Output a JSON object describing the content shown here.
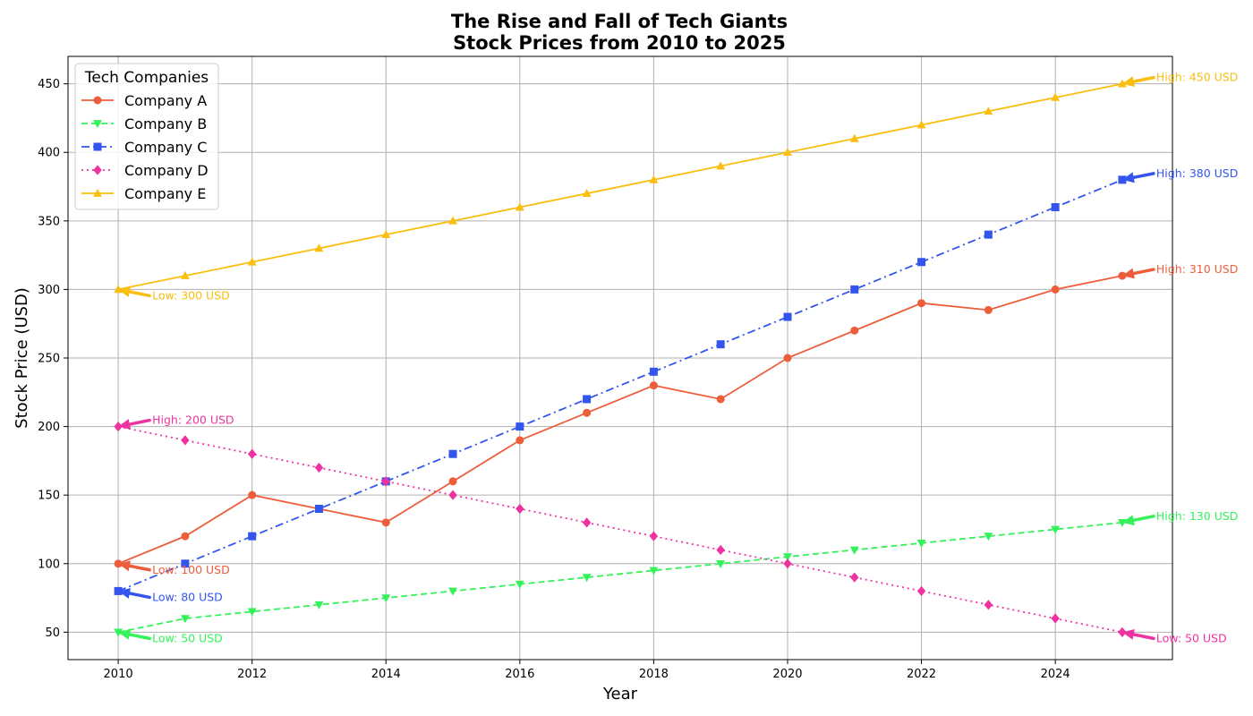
{
  "chart_data": {
    "type": "line",
    "title_line1": "The Rise and Fall of Tech Giants",
    "title_line2": "Stock Prices from 2010 to 2025",
    "xlabel": "Year",
    "ylabel": "Stock Price (USD)",
    "xlim": [
      2009.25,
      2025.75
    ],
    "ylim": [
      30,
      470
    ],
    "x_ticks": [
      2010,
      2012,
      2014,
      2016,
      2018,
      2020,
      2022,
      2024
    ],
    "y_ticks": [
      50,
      100,
      150,
      200,
      250,
      300,
      350,
      400,
      450
    ],
    "grid": true,
    "legend_title": "Tech Companies",
    "legend_position": "top-left",
    "x": [
      2010,
      2011,
      2012,
      2013,
      2014,
      2015,
      2016,
      2017,
      2018,
      2019,
      2020,
      2021,
      2022,
      2023,
      2024,
      2025
    ],
    "series": [
      {
        "name": "Company A",
        "color": "#EE5D3B",
        "marker": "circle",
        "linestyle": "solid",
        "values": [
          100,
          120,
          150,
          140,
          130,
          160,
          190,
          210,
          230,
          220,
          250,
          270,
          290,
          285,
          300,
          310
        ],
        "low_label": "Low: 100 USD",
        "high_label": "High: 310 USD"
      },
      {
        "name": "Company B",
        "color": "#33F25A",
        "marker": "triangle-down",
        "linestyle": "dashed",
        "values": [
          50,
          60,
          65,
          70,
          75,
          80,
          85,
          90,
          95,
          100,
          105,
          110,
          115,
          120,
          125,
          130
        ],
        "low_label": "Low: 50 USD",
        "high_label": "High: 130 USD"
      },
      {
        "name": "Company C",
        "color": "#3355EE",
        "marker": "square",
        "linestyle": "dashdot",
        "values": [
          80,
          100,
          120,
          140,
          160,
          180,
          200,
          220,
          240,
          260,
          280,
          300,
          320,
          340,
          360,
          380
        ],
        "low_label": "Low: 80 USD",
        "high_label": "High: 380 USD"
      },
      {
        "name": "Company D",
        "color": "#EE33A1",
        "marker": "diamond",
        "linestyle": "dotted",
        "values": [
          200,
          190,
          180,
          170,
          160,
          150,
          140,
          130,
          120,
          110,
          100,
          90,
          80,
          70,
          60,
          50
        ],
        "low_label": "Low: 50 USD",
        "high_label": "High: 200 USD"
      },
      {
        "name": "Company E",
        "color": "#F9BE0E",
        "marker": "triangle-up",
        "linestyle": "solid",
        "values": [
          300,
          310,
          320,
          330,
          340,
          350,
          360,
          370,
          380,
          390,
          400,
          410,
          420,
          430,
          440,
          450
        ],
        "low_label": "Low: 300 USD",
        "high_label": "High: 450 USD"
      }
    ]
  }
}
